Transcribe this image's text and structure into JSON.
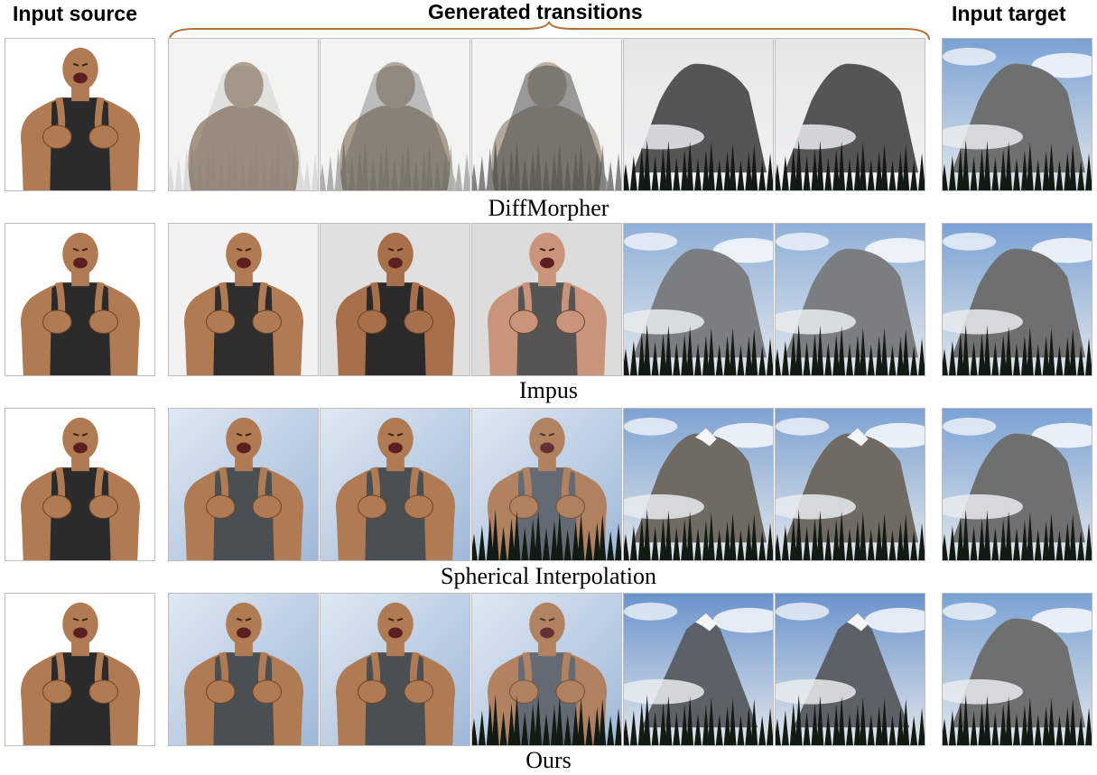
{
  "headers": {
    "source": "Input source",
    "generated": "Generated transitions",
    "target": "Input target"
  },
  "rows": [
    {
      "caption": "DiffMorpher",
      "style": "ghost",
      "frames": [
        {
          "content": "ghost-person",
          "mix": 0.1
        },
        {
          "content": "ghost-person",
          "mix": 0.3
        },
        {
          "content": "ghost-person",
          "mix": 0.5
        },
        {
          "content": "gray-mountain",
          "mix": 0.7
        },
        {
          "content": "gray-mountain",
          "mix": 0.9
        }
      ]
    },
    {
      "caption": "Impus",
      "style": "identity-shift",
      "frames": [
        {
          "content": "person-tank",
          "mix": 0.0
        },
        {
          "content": "person-jersey",
          "mix": 0.0
        },
        {
          "content": "person-camo",
          "mix": 0.0
        },
        {
          "content": "mountain-cloudy",
          "mix": 0.0
        },
        {
          "content": "mountain-cloudy",
          "mix": 0.0
        }
      ]
    },
    {
      "caption": "Spherical Interpolation",
      "style": "blend",
      "frames": [
        {
          "content": "person-gray-tank",
          "mix": 0.0
        },
        {
          "content": "person-gray-tank",
          "mix": 0.0
        },
        {
          "content": "person-with-trees",
          "mix": 0.5
        },
        {
          "content": "mountain-snow",
          "mix": 0.0
        },
        {
          "content": "mountain-snow",
          "mix": 0.0
        }
      ]
    },
    {
      "caption": "Ours",
      "style": "smooth",
      "frames": [
        {
          "content": "person-gray-tank",
          "mix": 0.0
        },
        {
          "content": "person-gray-tank",
          "mix": 0.15
        },
        {
          "content": "person-with-trees",
          "mix": 0.5
        },
        {
          "content": "mountain-peak",
          "mix": 0.0
        },
        {
          "content": "mountain-peak",
          "mix": 0.0
        }
      ]
    }
  ]
}
